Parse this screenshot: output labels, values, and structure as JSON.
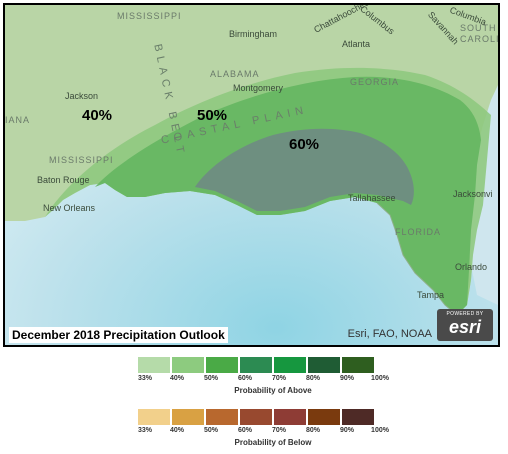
{
  "map": {
    "title": "December 2018 Precipitation Outlook",
    "attribution": "Esri, FAO, NOAA",
    "logo": {
      "powered_by": "POWERED BY",
      "name": "esri"
    },
    "zones": [
      {
        "label": "40%",
        "color": "#8ec97e"
      },
      {
        "label": "50%",
        "color": "#65b462"
      },
      {
        "label": "60%",
        "color": "#6b8f7c"
      }
    ],
    "state_labels": [
      "MISSISSIPPI",
      "ALABAMA",
      "GEORGIA",
      "MISSISSIPPI",
      "FLORIDA",
      "SOUTH CAROLINA",
      "IANA"
    ],
    "region_labels": [
      "BLACK BELT",
      "COASTAL PLAIN"
    ],
    "cities": [
      "Birmingham",
      "Atlanta",
      "Jackson",
      "Montgomery",
      "Baton Rouge",
      "New Orleans",
      "Tallahassee",
      "Jacksonvi",
      "Orlando",
      "Tampa",
      "Columbia",
      "Columbus",
      "Savannah",
      "Chattahoochee"
    ],
    "colors": {
      "water": "#cfe7ef",
      "land": "#b7d3a4"
    }
  },
  "legend_above": {
    "caption": "Probability of Above",
    "ticks": [
      "33%",
      "40%",
      "50%",
      "60%",
      "70%",
      "80%",
      "90%",
      "100%"
    ],
    "colors": [
      "#b5dba9",
      "#8dcb7f",
      "#4aaa46",
      "#2c8b52",
      "#16973f",
      "#1f5c34",
      "#2e5e1f"
    ]
  },
  "legend_below": {
    "caption": "Probability of Below",
    "ticks": [
      "33%",
      "40%",
      "50%",
      "60%",
      "70%",
      "80%",
      "90%",
      "100%"
    ],
    "colors": [
      "#f2d08b",
      "#d9a143",
      "#b8682e",
      "#98492f",
      "#8e3c35",
      "#7a3a0e",
      "#4e2a26"
    ]
  }
}
